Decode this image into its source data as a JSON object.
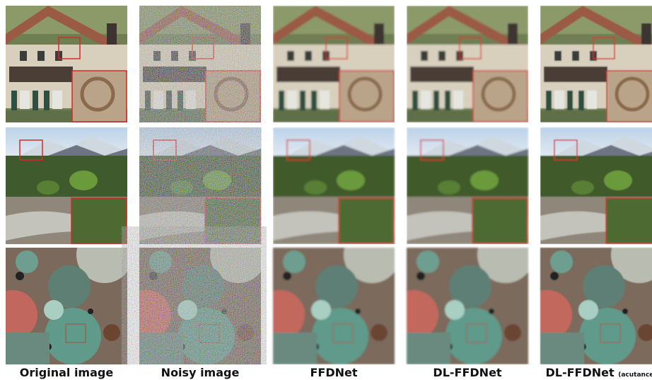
{
  "columns": [
    {
      "label": "Original image"
    },
    {
      "label": "Noisy image"
    },
    {
      "label": "FFDNet"
    },
    {
      "label": "DL-FFDNet"
    },
    {
      "label": "DL-FFDNet",
      "note": "(acutance)"
    }
  ]
}
